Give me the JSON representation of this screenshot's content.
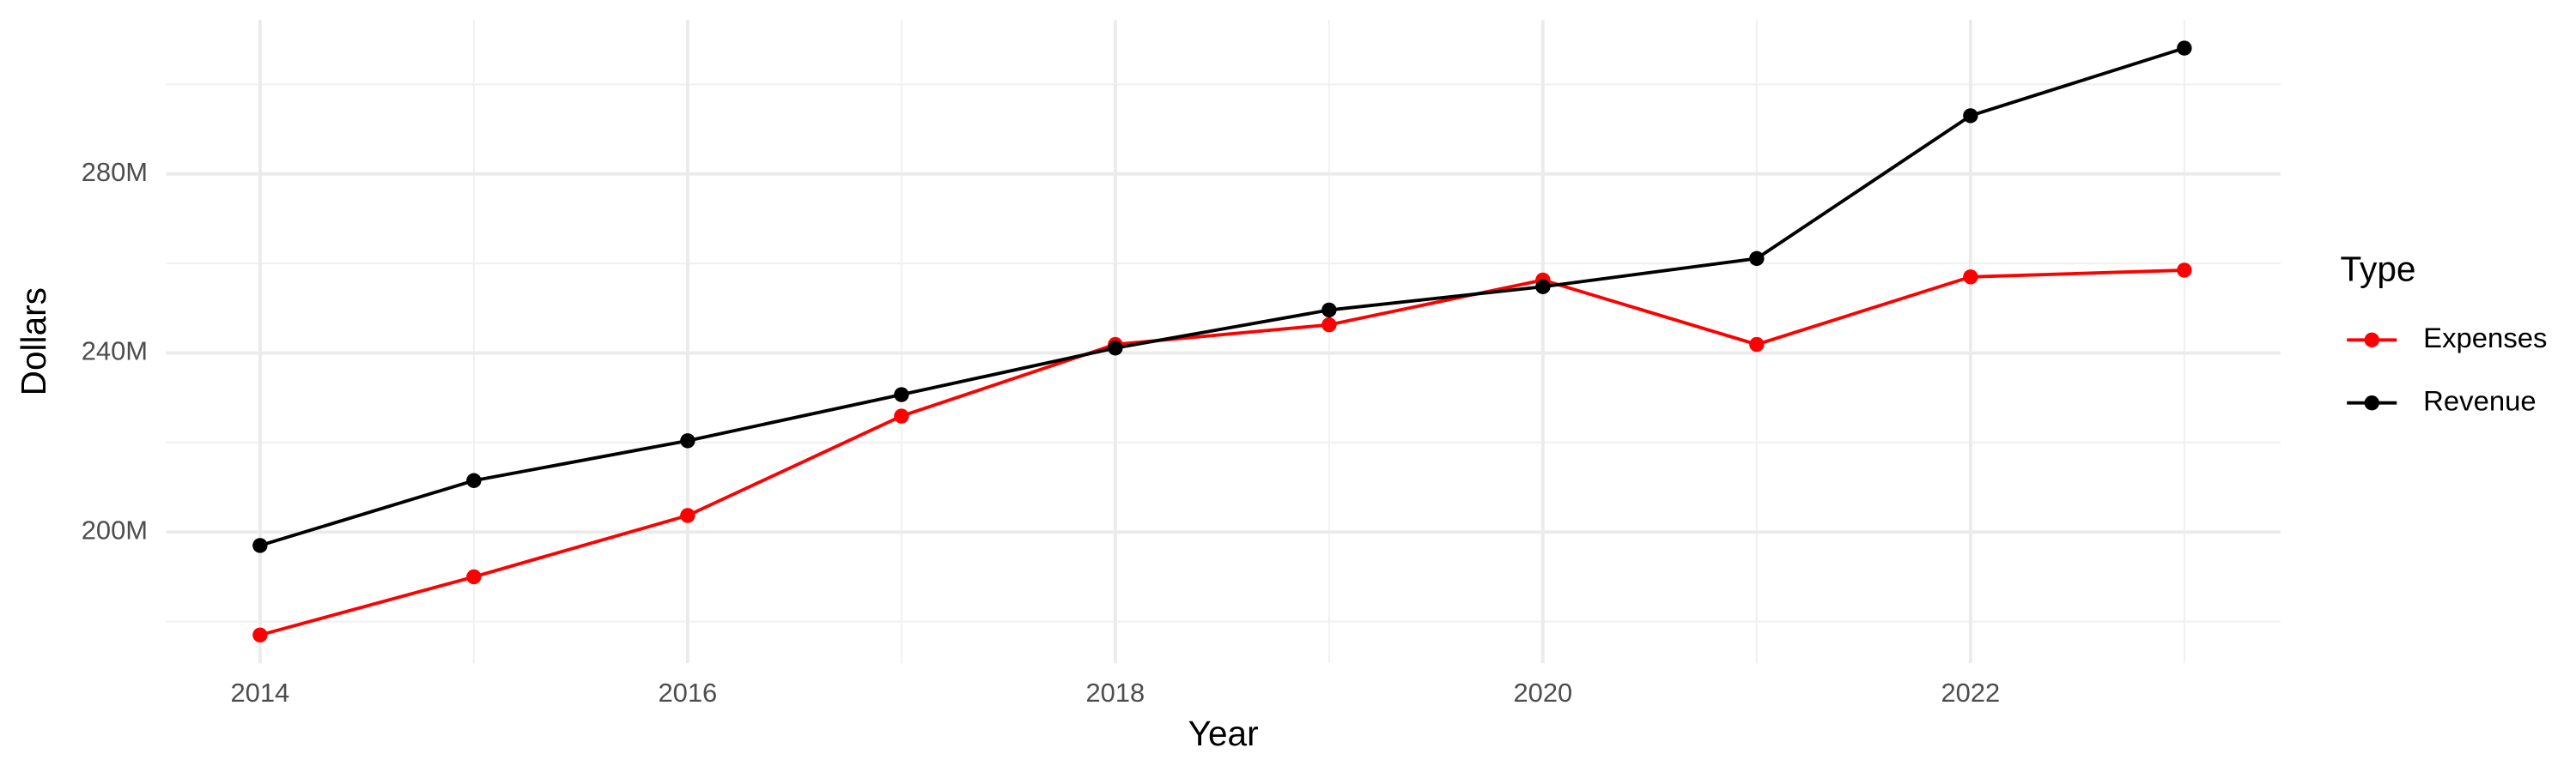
{
  "chart_data": {
    "type": "line",
    "x_label": "Year",
    "y_label": "Dollars",
    "legend_title": "Type",
    "legend_position": "right",
    "grid": true,
    "x": [
      2014,
      2015,
      2016,
      2017,
      2018,
      2019,
      2020,
      2021,
      2022,
      2023
    ],
    "series": [
      {
        "name": "Expenses",
        "color": "#ff0000",
        "values": [
          177000000,
          190000000,
          203700000,
          225900000,
          241900000,
          246300000,
          256300000,
          241900000,
          257000000,
          258500000
        ]
      },
      {
        "name": "Revenue",
        "color": "#000000",
        "values": [
          197000000,
          211500000,
          220400000,
          230700000,
          241100000,
          249600000,
          254800000,
          261100000,
          293000000,
          308100000
        ]
      }
    ],
    "xlim": [
      2013.56,
      2023.45
    ],
    "xticks": [
      2014,
      2016,
      2018,
      2020,
      2022
    ],
    "ylim": [
      170700000,
      314400000
    ],
    "yticks": [
      {
        "value": 200000000,
        "label": "200M"
      },
      {
        "value": 240000000,
        "label": "240M"
      },
      {
        "value": 280000000,
        "label": "280M"
      }
    ]
  }
}
